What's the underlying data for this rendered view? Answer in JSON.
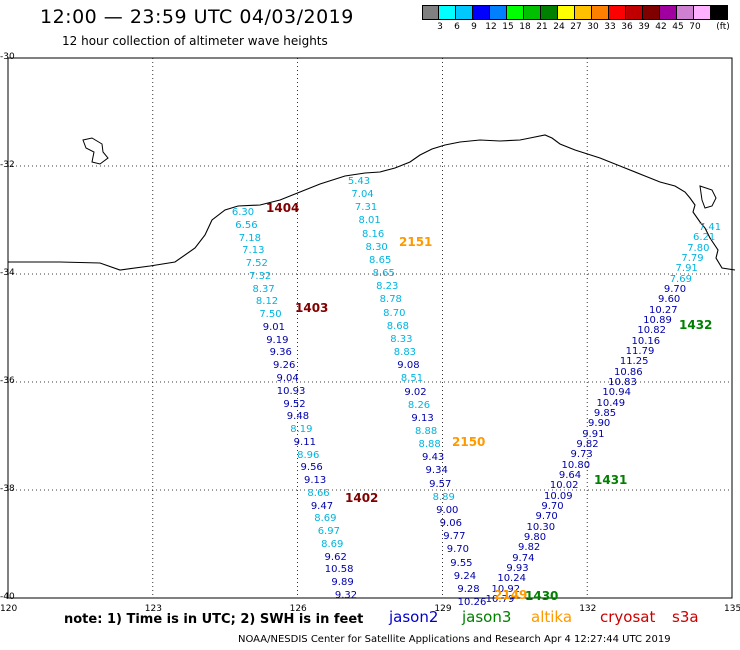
{
  "header": {
    "title": "12:00 — 23:59 UTC 04/03/2019",
    "subtitle": "12 hour collection of altimeter wave heights"
  },
  "scale": {
    "unit_label": "(ft)",
    "colors": [
      "#808080",
      "#00ffff",
      "#00c8ff",
      "#0000ff",
      "#0080ff",
      "#00ff00",
      "#00c000",
      "#008000",
      "#ffff00",
      "#ffc000",
      "#ff8000",
      "#ff0000",
      "#c00000",
      "#800000",
      "#a000a0",
      "#d080d0",
      "#ffb0ff",
      "#000000"
    ],
    "labels": [
      "3",
      "6",
      "9",
      "12",
      "15",
      "18",
      "21",
      "24",
      "27",
      "30",
      "33",
      "36",
      "39",
      "42",
      "45",
      "70"
    ]
  },
  "axes": {
    "lat_labels": [
      "-30",
      "-32",
      "-34",
      "-36",
      "-38",
      "-40"
    ],
    "lon_labels": [
      "120",
      "123",
      "126",
      "129",
      "132",
      "135"
    ],
    "grid": true,
    "lat_range": [
      -40,
      -30
    ],
    "lon_range": [
      120,
      135
    ]
  },
  "passes": [
    {
      "label": "1404",
      "satellite": "cryosat",
      "color": "#800000"
    },
    {
      "label": "1403",
      "satellite": "cryosat",
      "color": "#800000"
    },
    {
      "label": "1402",
      "satellite": "cryosat",
      "color": "#800000"
    },
    {
      "label": "2151",
      "satellite": "altika",
      "color": "#ff9900"
    },
    {
      "label": "2150",
      "satellite": "altika",
      "color": "#ff9900"
    },
    {
      "label": "2149",
      "satellite": "altika",
      "color": "#ff9900"
    },
    {
      "label": "1432",
      "satellite": "jason3",
      "color": "#008000"
    },
    {
      "label": "1431",
      "satellite": "jason3",
      "color": "#008000"
    },
    {
      "label": "1430",
      "satellite": "jason3",
      "color": "#008000"
    }
  ],
  "tracks": {
    "track_a": [
      "6.30",
      "6.56",
      "7.18",
      "7.13",
      "7.52",
      "7.32",
      "8.37",
      "8.12",
      "7.50",
      "9.01",
      "9.19",
      "9.36",
      "9.26",
      "9.04",
      "10.93",
      "9.52",
      "9.48",
      "8.19",
      "9.11",
      "8.96",
      "9.56",
      "9.13",
      "8.66",
      "9.47",
      "8.69",
      "6.97",
      "8.69",
      "9.62",
      "10.58",
      "9.89",
      "9.32"
    ],
    "track_b": [
      "5.43",
      "7.04",
      "7.31",
      "8.01",
      "8.16",
      "8.30",
      "8.65",
      "8.65",
      "8.23",
      "8.78",
      "8.70",
      "8.68",
      "8.33",
      "8.83",
      "9.08",
      "8.51",
      "9.02",
      "8.26",
      "9.13",
      "8.88",
      "8.88",
      "9.43",
      "9.34",
      "9.57",
      "8.89",
      "9.00",
      "9.06",
      "9.77",
      "9.70",
      "9.55",
      "9.24",
      "9.28",
      "10.26"
    ],
    "track_c": [
      "7.41",
      "6.21",
      "7.80",
      "7.79",
      "7.91",
      "7.69",
      "9.70",
      "9.60",
      "10.27",
      "10.89",
      "10.82",
      "10.16",
      "11.79",
      "11.25",
      "10.86",
      "10.83",
      "10.94",
      "10.49",
      "9.85",
      "9.90",
      "9.91",
      "9.82",
      "9.73",
      "10.80",
      "9.64",
      "10.02",
      "10.09",
      "9.70",
      "9.70",
      "10.30",
      "9.80",
      "9.82",
      "9.74",
      "9.93",
      "10.24",
      "10.92",
      "10.79"
    ]
  },
  "footer": {
    "note": "note:  1) Time is in UTC;  2) SWH is in feet",
    "satellites": [
      {
        "name": "jason2",
        "color": "#0000cc"
      },
      {
        "name": "jason3",
        "color": "#008000"
      },
      {
        "name": "altika",
        "color": "#ff9900"
      },
      {
        "name": "cryosat",
        "color": "#cc0000"
      },
      {
        "name": "s3a",
        "color": "#cc0000"
      }
    ],
    "credit": "NOAA/NESDIS Center for Satellite Applications and Research     Apr  4 12:27:44 UTC 2019"
  }
}
